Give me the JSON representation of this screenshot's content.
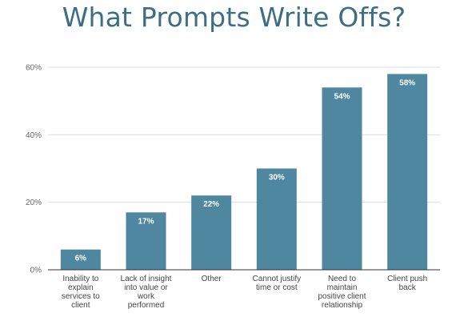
{
  "chart_data": {
    "type": "bar",
    "title": "What Prompts Write Offs?",
    "categories": [
      "Inability to explain services to client",
      "Lack of insight into value or work performed",
      "Other",
      "Cannot justify time or cost",
      "Need to maintain positive client relationship",
      "Client push back"
    ],
    "category_lines": [
      [
        "Inability to",
        "explain",
        "services to",
        "client"
      ],
      [
        "Lack of insight",
        "into value or",
        "work",
        "performed"
      ],
      [
        "Other"
      ],
      [
        "Cannot justify",
        "time or cost"
      ],
      [
        "Need to",
        "maintain",
        "positive client",
        "relationship"
      ],
      [
        "Client push",
        "back"
      ]
    ],
    "values": [
      6,
      17,
      22,
      30,
      54,
      58
    ],
    "data_labels": [
      "6%",
      "17%",
      "22%",
      "30%",
      "54%",
      "58%"
    ],
    "yticks": [
      0,
      20,
      40,
      60
    ],
    "ytick_labels": [
      "0%",
      "20%",
      "40%",
      "60%"
    ],
    "ylim": [
      0,
      60
    ],
    "grid": true,
    "bar_color": "#4f87a0",
    "grid_color": "#dddddd",
    "axis_color": "#333333",
    "title_color": "#3e6e82"
  }
}
